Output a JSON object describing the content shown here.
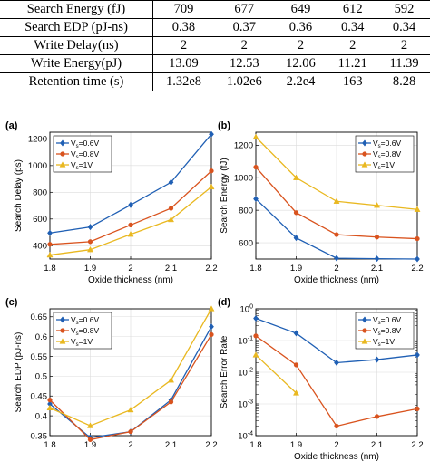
{
  "table": {
    "rows": [
      {
        "label": "Search Energy (fJ)",
        "values": [
          "709",
          "677",
          "649",
          "612",
          "592"
        ]
      },
      {
        "label": "Search EDP (pJ-ns)",
        "values": [
          "0.38",
          "0.37",
          "0.36",
          "0.34",
          "0.34"
        ]
      },
      {
        "label": "Write Delay(ns)",
        "values": [
          "2",
          "2",
          "2",
          "2",
          "2"
        ]
      },
      {
        "label": "Write Energy(pJ)",
        "values": [
          "13.09",
          "12.53",
          "12.06",
          "11.21",
          "11.39"
        ]
      },
      {
        "label": "Retention time (s)",
        "values": [
          "1.32e8",
          "1.02e6",
          "2.2e4",
          "163",
          "8.28"
        ]
      }
    ]
  },
  "colors": {
    "s06": "#1f5fb4",
    "s08": "#d9531e",
    "s1": "#e9b820"
  },
  "chart_data": [
    {
      "panel": "(a)",
      "type": "line",
      "x": [
        1.8,
        1.9,
        2.0,
        2.1,
        2.2
      ],
      "xticks": [
        "1.8",
        "1.9",
        "2",
        "2.1",
        "2.2"
      ],
      "xlabel": "Oxide thickness (nm)",
      "ylabel": "Search Delay (ps)",
      "ylim": [
        300,
        1250
      ],
      "log": false,
      "yticks": [
        {
          "v": 400,
          "t": "400"
        },
        {
          "v": 600,
          "t": "600"
        },
        {
          "v": 800,
          "t": "800"
        },
        {
          "v": 1000,
          "t": "1000"
        },
        {
          "v": 1200,
          "t": "1200"
        }
      ],
      "legend": "top-left",
      "series": [
        {
          "name": "V",
          "sub": "s",
          "suffix": "=0.6V",
          "color": "#1f5fb4",
          "marker": "diamond",
          "values": [
            495,
            540,
            705,
            875,
            1235
          ]
        },
        {
          "name": "V",
          "sub": "s",
          "suffix": "=0.8V",
          "color": "#d9531e",
          "marker": "circle",
          "values": [
            410,
            430,
            555,
            680,
            960
          ]
        },
        {
          "name": "V",
          "sub": "s",
          "suffix": "=1V",
          "color": "#e9b820",
          "marker": "triangle",
          "values": [
            330,
            370,
            485,
            595,
            840
          ]
        }
      ]
    },
    {
      "panel": "(b)",
      "type": "line",
      "x": [
        1.8,
        1.9,
        2.0,
        2.1,
        2.2
      ],
      "xticks": [
        "1.8",
        "1.9",
        "2",
        "2.1",
        "2.2"
      ],
      "xlabel": "Oxide thickness (nm)",
      "ylabel": "Search Energy (fJ)",
      "ylim": [
        500,
        1280
      ],
      "log": false,
      "yticks": [
        {
          "v": 600,
          "t": "600"
        },
        {
          "v": 800,
          "t": "800"
        },
        {
          "v": 1000,
          "t": "1000"
        },
        {
          "v": 1200,
          "t": "1200"
        }
      ],
      "legend": "top-right",
      "series": [
        {
          "name": "V",
          "sub": "s",
          "suffix": "=0.6V",
          "color": "#1f5fb4",
          "marker": "diamond",
          "values": [
            870,
            630,
            505,
            502,
            500
          ]
        },
        {
          "name": "V",
          "sub": "s",
          "suffix": "=0.8V",
          "color": "#d9531e",
          "marker": "circle",
          "values": [
            1065,
            785,
            650,
            635,
            625
          ]
        },
        {
          "name": "V",
          "sub": "s",
          "suffix": "=1V",
          "color": "#e9b820",
          "marker": "triangle",
          "values": [
            1250,
            1000,
            855,
            830,
            805
          ]
        }
      ]
    },
    {
      "panel": "(c)",
      "type": "line",
      "x": [
        1.8,
        1.9,
        2.0,
        2.1,
        2.2
      ],
      "xticks": [
        "1.8",
        "1.9",
        "2",
        "2.1",
        "2.2"
      ],
      "xlabel": "",
      "ylabel": "Search EDP (pJ-ns)",
      "ylim": [
        0.35,
        0.67
      ],
      "log": false,
      "yticks": [
        {
          "v": 0.35,
          "t": "0.35"
        },
        {
          "v": 0.4,
          "t": "0.4"
        },
        {
          "v": 0.45,
          "t": "0.45"
        },
        {
          "v": 0.5,
          "t": "0.5"
        },
        {
          "v": 0.55,
          "t": "0.55"
        },
        {
          "v": 0.6,
          "t": "0.6"
        },
        {
          "v": 0.65,
          "t": "0.65"
        }
      ],
      "legend": "top-left",
      "series": [
        {
          "name": "V",
          "sub": "s",
          "suffix": "=0.6V",
          "color": "#1f5fb4",
          "marker": "diamond",
          "values": [
            0.43,
            0.345,
            0.36,
            0.44,
            0.625
          ]
        },
        {
          "name": "V",
          "sub": "s",
          "suffix": "=0.8V",
          "color": "#d9531e",
          "marker": "circle",
          "values": [
            0.44,
            0.34,
            0.36,
            0.435,
            0.605
          ]
        },
        {
          "name": "V",
          "sub": "s",
          "suffix": "=1V",
          "color": "#e9b820",
          "marker": "triangle",
          "values": [
            0.42,
            0.375,
            0.415,
            0.49,
            0.67
          ]
        }
      ]
    },
    {
      "panel": "(d)",
      "type": "line",
      "x": [
        1.8,
        1.9,
        2.0,
        2.1,
        2.2
      ],
      "xticks": [
        "1.8",
        "1.9",
        "2",
        "2.1",
        "2.2"
      ],
      "xlabel": "Oxide thickness (nm)",
      "ylabel": "Search Error Rate",
      "ylim": [
        0.0001,
        1
      ],
      "log": true,
      "yticks": [
        {
          "v": 0.0001,
          "b": "10",
          "e": "-4"
        },
        {
          "v": 0.001,
          "b": "10",
          "e": "-3"
        },
        {
          "v": 0.01,
          "b": "10",
          "e": "-2"
        },
        {
          "v": 0.1,
          "b": "10",
          "e": "-1"
        },
        {
          "v": 1,
          "b": "10",
          "e": "0"
        }
      ],
      "legend": "top-right",
      "series": [
        {
          "name": "V",
          "sub": "s",
          "suffix": "=0.6V",
          "color": "#1f5fb4",
          "marker": "diamond",
          "values": [
            0.5,
            0.17,
            0.02,
            0.025,
            0.035
          ]
        },
        {
          "name": "V",
          "sub": "s",
          "suffix": "=0.8V",
          "color": "#d9531e",
          "marker": "circle",
          "values": [
            0.14,
            0.017,
            0.0002,
            0.0004,
            0.0007
          ]
        },
        {
          "name": "V",
          "sub": "s",
          "suffix": "=1V",
          "color": "#e9b820",
          "marker": "triangle",
          "values": [
            0.035,
            0.0022,
            null,
            null,
            null
          ]
        }
      ]
    }
  ]
}
